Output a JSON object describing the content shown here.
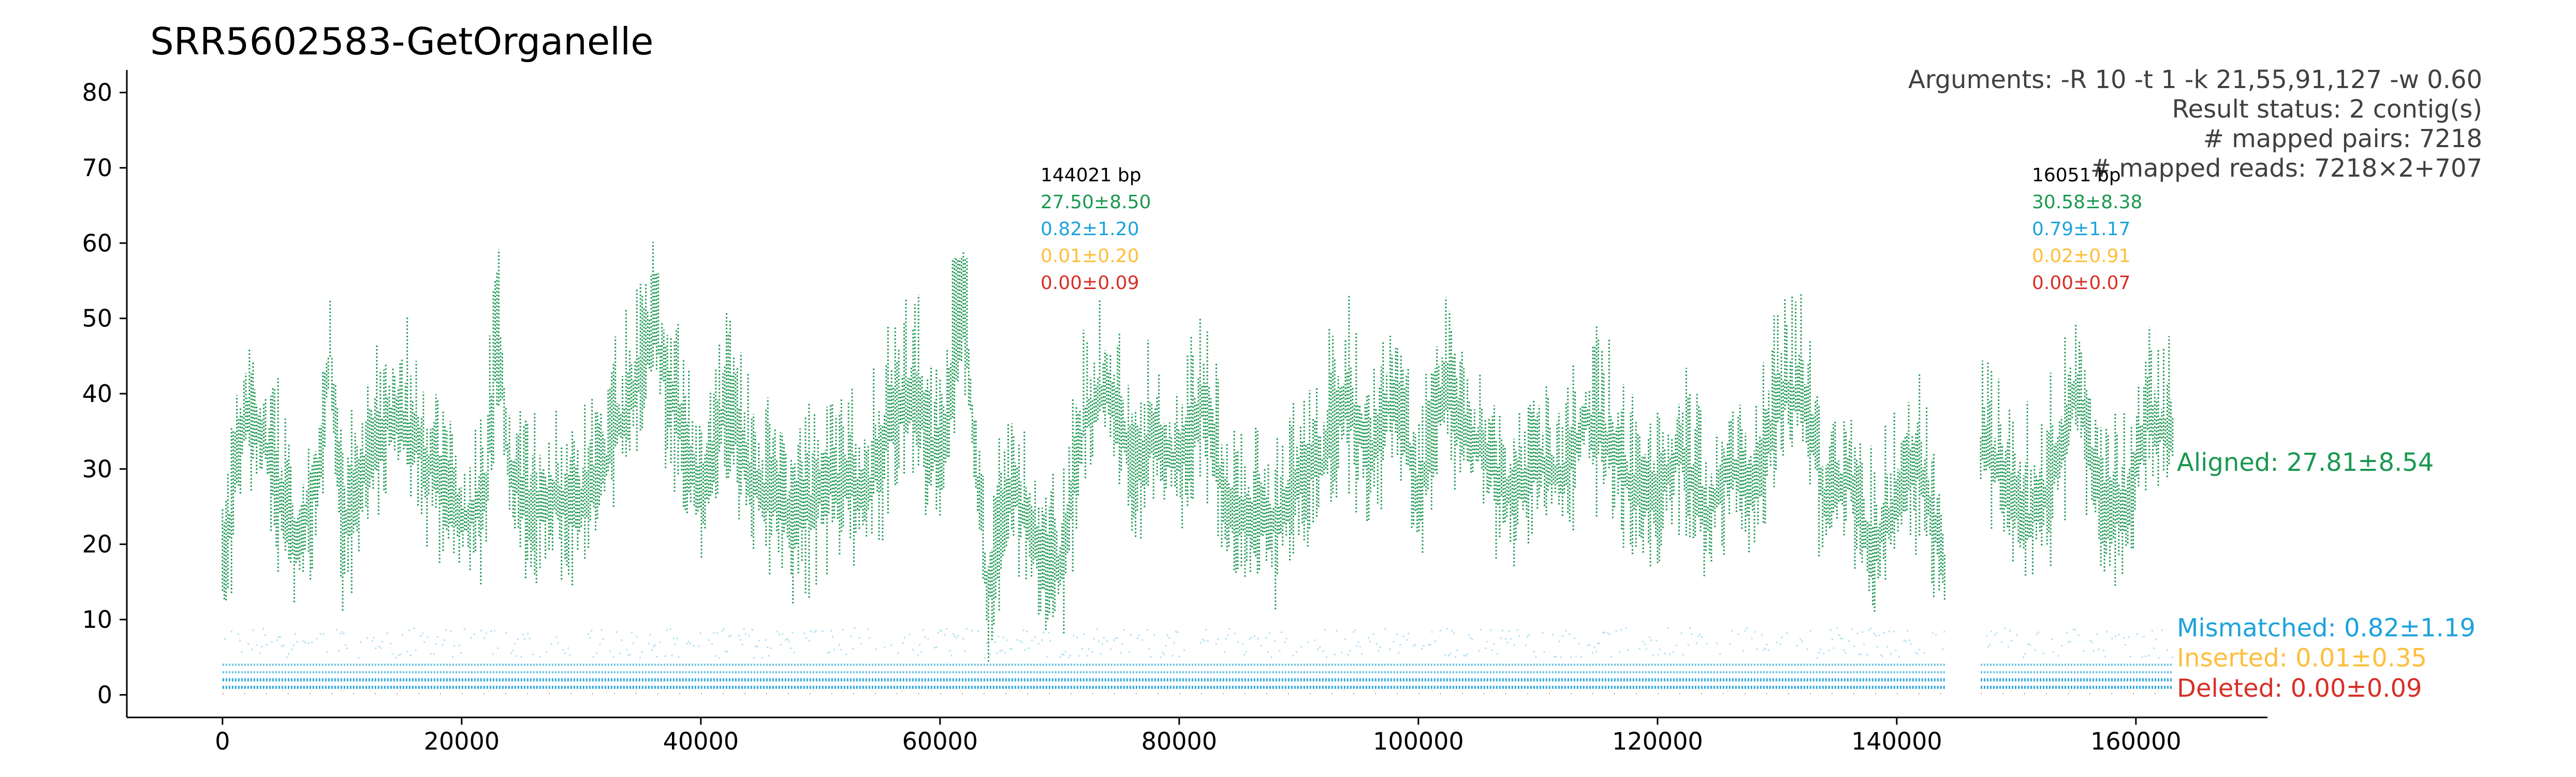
{
  "chart_data": {
    "type": "scatter",
    "title": "SRR5602583-GetOrganelle",
    "xlabel": "",
    "ylabel": "",
    "xlim": [
      -8000,
      171000
    ],
    "ylim": [
      -3,
      83
    ],
    "xticks": [
      0,
      20000,
      40000,
      60000,
      80000,
      100000,
      120000,
      140000,
      160000
    ],
    "yticks": [
      0,
      10,
      20,
      30,
      40,
      50,
      60,
      70,
      80
    ],
    "grid": false,
    "arguments_text": [
      "Arguments: -R 10 -t 1 -k 21,55,91,127 -w 0.60",
      "Result status: 2 contig(s)",
      "# mapped pairs: 7218",
      "# mapped reads: 7218×2+707"
    ],
    "contigs": [
      {
        "start": 0,
        "length": 144021,
        "length_label": "144021 bp",
        "aligned": "27.50±8.50",
        "mismatched": "0.82±1.20",
        "inserted": "0.01±0.20",
        "deleted": "0.00±0.09"
      },
      {
        "start": 147021,
        "length": 16051,
        "length_label": "16051 bp",
        "aligned": "30.58±8.38",
        "mismatched": "0.79±1.17",
        "inserted": "0.02±0.91",
        "deleted": "0.00±0.07"
      }
    ],
    "series": [
      {
        "name": "Aligned: 27.81±8.54",
        "color": "#1a9850",
        "x": [
          0,
          2000,
          4000,
          6000,
          8000,
          9000,
          10000,
          12000,
          14000,
          16000,
          18000,
          20000,
          22000,
          23000,
          24000,
          26000,
          28000,
          30000,
          32000,
          34000,
          36000,
          38000,
          40000,
          42000,
          44000,
          46000,
          48000,
          50000,
          52000,
          54000,
          56000,
          58000,
          60000,
          62000,
          64000,
          66000,
          68000,
          70000,
          72000,
          74000,
          76000,
          78000,
          80000,
          82000,
          84000,
          86000,
          88000,
          90000,
          92000,
          94000,
          96000,
          98000,
          100000,
          102000,
          104000,
          106000,
          108000,
          110000,
          112000,
          114000,
          116000,
          118000,
          120000,
          122000,
          124000,
          126000,
          128000,
          130000,
          132000,
          134000,
          136000,
          138000,
          140000,
          142000,
          144000,
          147100,
          149000,
          151000,
          153000,
          155000,
          157000,
          159000,
          161000,
          163000
        ],
        "y": [
          15,
          38,
          30,
          18,
          28,
          45,
          20,
          30,
          36,
          33,
          28,
          22,
          25,
          48,
          28,
          24,
          25,
          25,
          30,
          38,
          48,
          36,
          25,
          38,
          28,
          25,
          22,
          26,
          28,
          26,
          35,
          38,
          30,
          48,
          12,
          28,
          18,
          15,
          35,
          40,
          30,
          33,
          30,
          38,
          25,
          22,
          22,
          28,
          30,
          38,
          30,
          40,
          25,
          40,
          35,
          30,
          25,
          30,
          28,
          36,
          33,
          26,
          25,
          32,
          22,
          30,
          26,
          38,
          40,
          25,
          28,
          18,
          25,
          30,
          15,
          32,
          28,
          22,
          28,
          40,
          25,
          22,
          36,
          33
        ]
      },
      {
        "name": "Mismatched: 0.82±1.19",
        "color": "#1da2dc"
      },
      {
        "name": "Inserted: 0.01±0.35",
        "color": "#fdbf3a"
      },
      {
        "name": "Deleted: 0.00±0.09",
        "color": "#d73027"
      }
    ]
  }
}
